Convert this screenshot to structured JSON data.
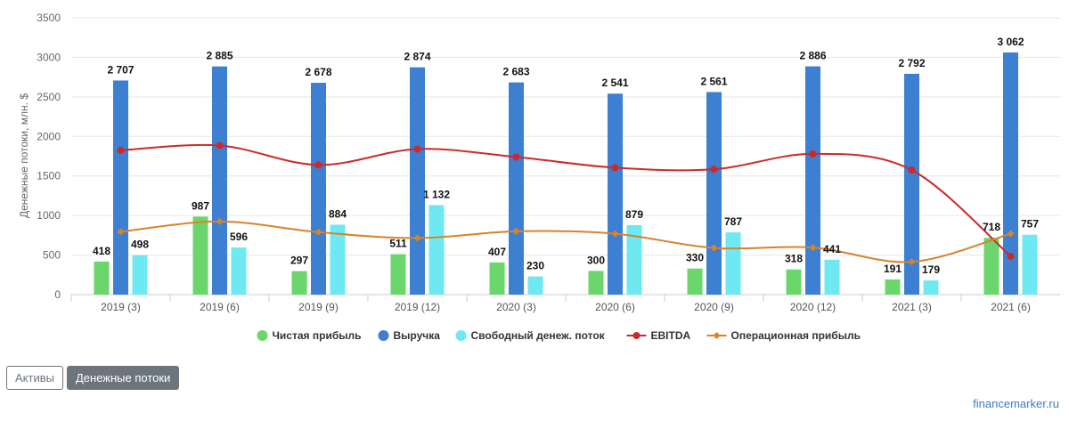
{
  "chart_data": {
    "type": "bar",
    "ylabel": "Денежные потоки, млн. $",
    "ylim": [
      0,
      3500
    ],
    "yticks": [
      0,
      500,
      1000,
      1500,
      2000,
      2500,
      3000,
      3500
    ],
    "categories": [
      "2019 (3)",
      "2019 (6)",
      "2019 (9)",
      "2019 (12)",
      "2020 (3)",
      "2020 (6)",
      "2020 (9)",
      "2020 (12)",
      "2021 (3)",
      "2021 (6)"
    ],
    "grid": true,
    "legend_position": "bottom",
    "series": [
      {
        "name": "Чистая прибыль",
        "kind": "bar",
        "color": "#6bd66b",
        "values": [
          418,
          987,
          297,
          511,
          407,
          300,
          330,
          318,
          191,
          718
        ],
        "labels": [
          "418",
          "987",
          "297",
          "511",
          "407",
          "300",
          "330",
          "318",
          "191",
          "718"
        ]
      },
      {
        "name": "Выручка",
        "kind": "bar",
        "color": "#3d7fd0",
        "values": [
          2707,
          2885,
          2678,
          2874,
          2683,
          2541,
          2561,
          2886,
          2792,
          3062
        ],
        "labels": [
          "2 707",
          "2 885",
          "2 678",
          "2 874",
          "2 683",
          "2 541",
          "2 561",
          "2 886",
          "2 792",
          "3 062"
        ]
      },
      {
        "name": "Свободный денеж. поток",
        "kind": "bar",
        "color": "#6ee9f2",
        "values": [
          498,
          596,
          884,
          1132,
          230,
          879,
          787,
          441,
          179,
          757
        ],
        "labels": [
          "498",
          "596",
          "884",
          "1 132",
          "230",
          "879",
          "787",
          "441",
          "179",
          "757"
        ]
      },
      {
        "name": "EBITDA",
        "kind": "line",
        "color": "#cc2a2a",
        "values": [
          1825,
          1885,
          1640,
          1840,
          1740,
          1605,
          1585,
          1780,
          1575,
          485
        ]
      },
      {
        "name": "Операционная прибыль",
        "kind": "line",
        "color": "#d9822b",
        "values": [
          795,
          925,
          790,
          715,
          800,
          770,
          590,
          595,
          415,
          770
        ]
      }
    ]
  },
  "tabs": {
    "assets": "Активы",
    "cashflows": "Денежные потоки"
  },
  "credit": "financemarker.ru"
}
